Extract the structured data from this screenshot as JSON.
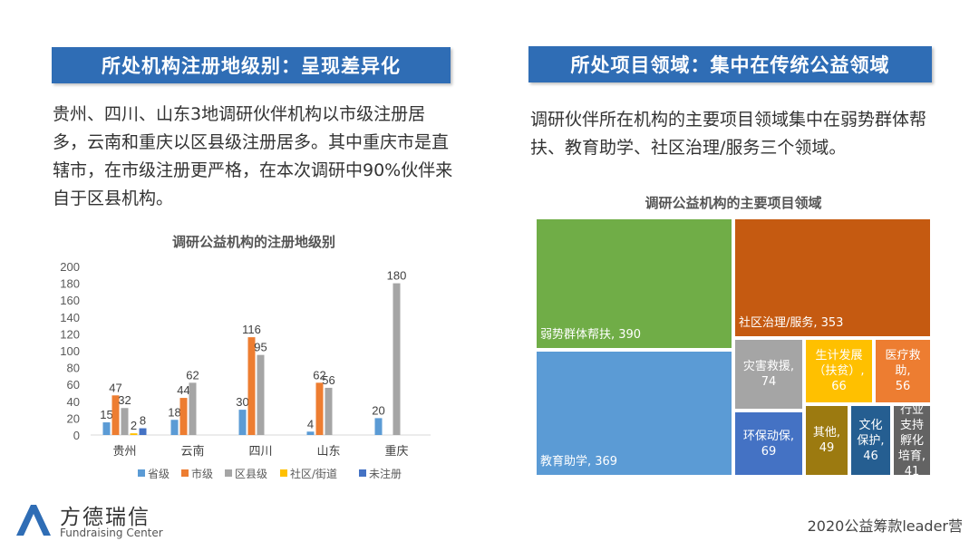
{
  "header_left": "所处机构注册地级别：呈现差异化",
  "header_right": "所处项目领域：集中在传统公益领域",
  "text_left": "贵州、四川、山东3地调研伙伴机构以市级注册居多，云南和重庆以区县级注册居多。其中重庆市是直辖市，在市级注册更严格，在本次调研中90%伙伴来自于区县机构。",
  "text_right": "调研伙伴所在机构的主要项目领域集中在弱势群体帮扶、教育助学、社区治理/服务三个领域。",
  "logo": {
    "name": "方德瑞信",
    "subtitle": "Fundraising Center"
  },
  "footer": "2020公益筹款leader营",
  "chart_data": [
    {
      "type": "bar",
      "title": "调研公益机构的注册地级别",
      "categories": [
        "贵州",
        "云南",
        "四川",
        "山东",
        "重庆"
      ],
      "ylim": [
        0,
        200
      ],
      "yticks": [
        0,
        20,
        40,
        60,
        80,
        100,
        120,
        140,
        160,
        180,
        200
      ],
      "grid": false,
      "legend": "bottom",
      "series": [
        {
          "name": "省级",
          "color": "#5b9bd5",
          "values": [
            15,
            18,
            30,
            4,
            20
          ]
        },
        {
          "name": "市级",
          "color": "#ed7d31",
          "values": [
            47,
            44,
            116,
            62,
            null
          ]
        },
        {
          "name": "区县级",
          "color": "#a5a5a5",
          "values": [
            32,
            62,
            95,
            56,
            180
          ]
        },
        {
          "name": "社区/街道",
          "color": "#ffc000",
          "values": [
            2,
            null,
            null,
            null,
            null
          ]
        },
        {
          "name": "未注册",
          "color": "#4472c4",
          "values": [
            8,
            null,
            null,
            null,
            null
          ]
        }
      ]
    },
    {
      "type": "treemap",
      "title": "调研公益机构的主要项目领域",
      "items": [
        {
          "label": "弱势群体帮扶, 390",
          "name": "弱势群体帮扶",
          "value": 390,
          "color": "#70ad47"
        },
        {
          "label": "教育助学, 369",
          "name": "教育助学",
          "value": 369,
          "color": "#5b9bd5"
        },
        {
          "label": "社区治理/服务, 353",
          "name": "社区治理/服务",
          "value": 353,
          "color": "#c55a11"
        },
        {
          "label": "灾害救援,\n74",
          "name": "灾害救援",
          "value": 74,
          "color": "#a5a5a5"
        },
        {
          "label": "生计发展\n（扶贫）,\n66",
          "name": "生计发展（扶贫）",
          "value": 66,
          "color": "#ffc000"
        },
        {
          "label": "医疗救助,\n56",
          "name": "医疗救助",
          "value": 56,
          "color": "#ed7d31"
        },
        {
          "label": "环保动保,\n69",
          "name": "环保动保",
          "value": 69,
          "color": "#4472c4"
        },
        {
          "label": "其他,\n49",
          "name": "其他",
          "value": 49,
          "color": "#9c7a10"
        },
        {
          "label": "文化\n保护,\n46",
          "name": "文化保护",
          "value": 46,
          "color": "#255e91"
        },
        {
          "label": "行业\n支持\n孵化\n培育,\n41",
          "name": "行业支持孵化培育",
          "value": 41,
          "color": "#636363"
        }
      ]
    }
  ]
}
